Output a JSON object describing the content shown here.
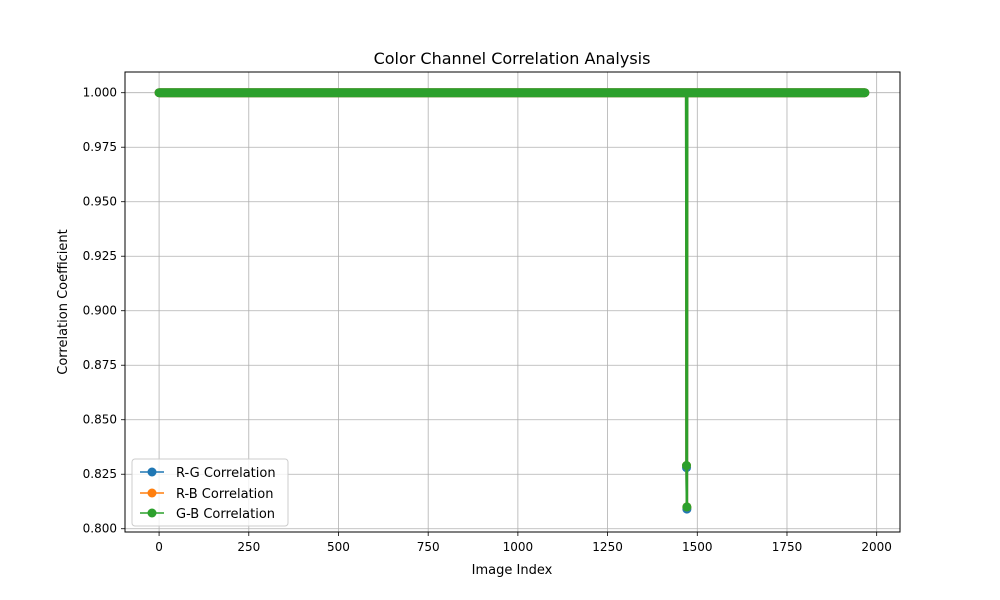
{
  "chart_data": {
    "type": "line",
    "title": "Color Channel Correlation Analysis",
    "xlabel": "Image Index",
    "ylabel": "Correlation Coefficient",
    "xlim": [
      -95,
      2065
    ],
    "ylim": [
      0.7985,
      1.0095
    ],
    "xticks": [
      0,
      250,
      500,
      750,
      1000,
      1250,
      1500,
      1750,
      2000
    ],
    "xtick_labels": [
      "0",
      "250",
      "500",
      "750",
      "1000",
      "1250",
      "1500",
      "1750",
      "2000"
    ],
    "yticks": [
      0.8,
      0.825,
      0.85,
      0.875,
      0.9,
      0.925,
      0.95,
      0.975,
      1.0
    ],
    "ytick_labels": [
      "0.800",
      "0.825",
      "0.850",
      "0.875",
      "0.900",
      "0.925",
      "0.950",
      "0.975",
      "1.000"
    ],
    "grid": true,
    "legend_position": "lower-left",
    "x_range": [
      0,
      1967
    ],
    "baseline_value": 1.0,
    "series": [
      {
        "name": "R-G Correlation",
        "color": "#1f77b4",
        "marker": "circle",
        "dips": [
          {
            "x": 1470,
            "y": 0.828
          },
          {
            "x": 1471,
            "y": 0.809
          }
        ]
      },
      {
        "name": "R-B Correlation",
        "color": "#ff7f0e",
        "marker": "circle",
        "dips": [
          {
            "x": 1470,
            "y": 0.829
          },
          {
            "x": 1471,
            "y": 0.81
          }
        ]
      },
      {
        "name": "G-B Correlation",
        "color": "#2ca02c",
        "marker": "circle",
        "dips": [
          {
            "x": 1470,
            "y": 0.829
          },
          {
            "x": 1471,
            "y": 0.81
          }
        ]
      }
    ]
  }
}
